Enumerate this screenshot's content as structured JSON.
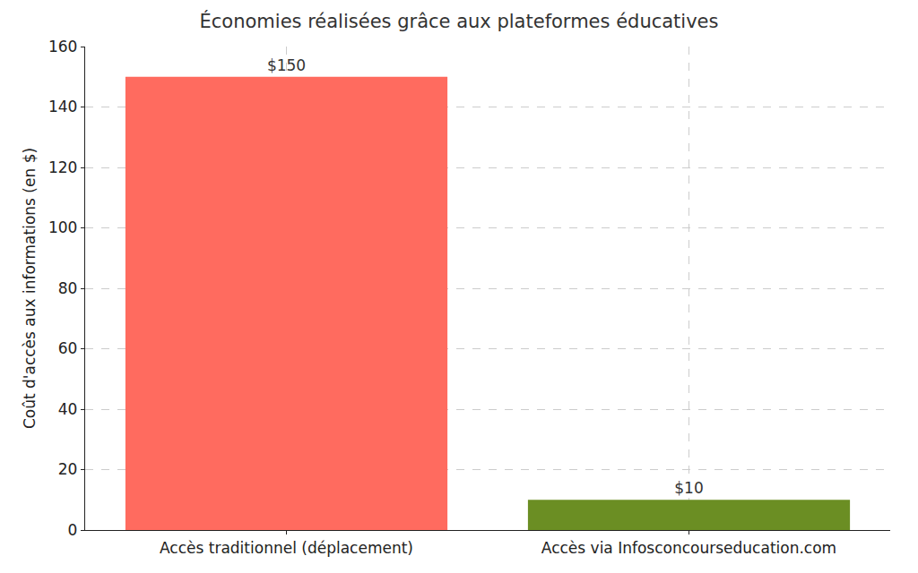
{
  "chart_data": {
    "type": "bar",
    "title": "Économies réalisées grâce aux plateformes éducatives",
    "y_label": "Coût d'accès aux informations (en $)",
    "categories": [
      "Accès traditionnel (déplacement)",
      "Accès via Infosconcourseducation.com"
    ],
    "values": [
      150,
      10
    ],
    "value_labels": [
      "$150",
      "$10"
    ],
    "colors": [
      "#ff6b5f",
      "#6b8e23"
    ],
    "ylim": [
      0,
      160
    ],
    "yticks": [
      0,
      20,
      40,
      60,
      80,
      100,
      120,
      140,
      160
    ],
    "grid": true,
    "data_labels": true
  }
}
